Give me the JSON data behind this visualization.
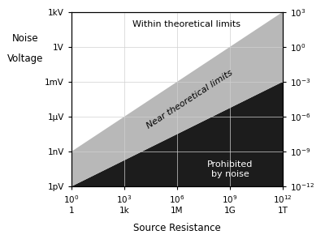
{
  "title": "",
  "xlabel": "Source Resistance",
  "ylabel_line1": "Noise",
  "ylabel_line2": "Voltage",
  "xmin": 1,
  "xmax": 1000000000000.0,
  "ymin": 1e-12,
  "ymax": 1000.0,
  "left_yticks": [
    1e-12,
    1e-09,
    1e-06,
    0.001,
    1,
    1000.0
  ],
  "left_yticklabels": [
    "1pV",
    "1nV",
    "1μV",
    "1mV",
    "1V",
    "1kV"
  ],
  "xticks": [
    1,
    1000.0,
    1000000.0,
    1000000000.0,
    1000000000000.0
  ],
  "xticklabels_top": [
    "$10^{0}$",
    "$10^{3}$",
    "$10^{6}$",
    "$10^{9}$",
    "$10^{12}$"
  ],
  "xticklabels_bot": [
    "1",
    "1k",
    "1M",
    "1G",
    "1T"
  ],
  "right_yticks": [
    1e-12,
    1e-09,
    1e-06,
    0.001,
    1,
    1000.0
  ],
  "right_yticklabels": [
    "$10^{-12}$",
    "$10^{-9}$",
    "$10^{-6}$",
    "$10^{-3}$",
    "$10^{0}$",
    "$10^{3}$"
  ],
  "upper_line_x0": 1,
  "upper_line_y0": 1e-09,
  "upper_line_x1": 1000000000000.0,
  "upper_line_y1": 1000.0,
  "lower_line_x0": 1,
  "lower_line_y0": 1e-12,
  "lower_line_x1": 1000000000000.0,
  "lower_line_y1": 0.001,
  "region_white_label": "Within theoretical limits",
  "region_gray_label": "Near theoretical limits",
  "region_black_label": "Prohibited\nby noise",
  "color_white": "#ffffff",
  "color_gray": "#b8b8b8",
  "color_black": "#1c1c1c",
  "grid_color": "#d0d0d0",
  "font_size_tick": 7.5,
  "font_size_region": 8,
  "font_size_axis_label": 8.5,
  "font_size_ylabel": 8.5
}
